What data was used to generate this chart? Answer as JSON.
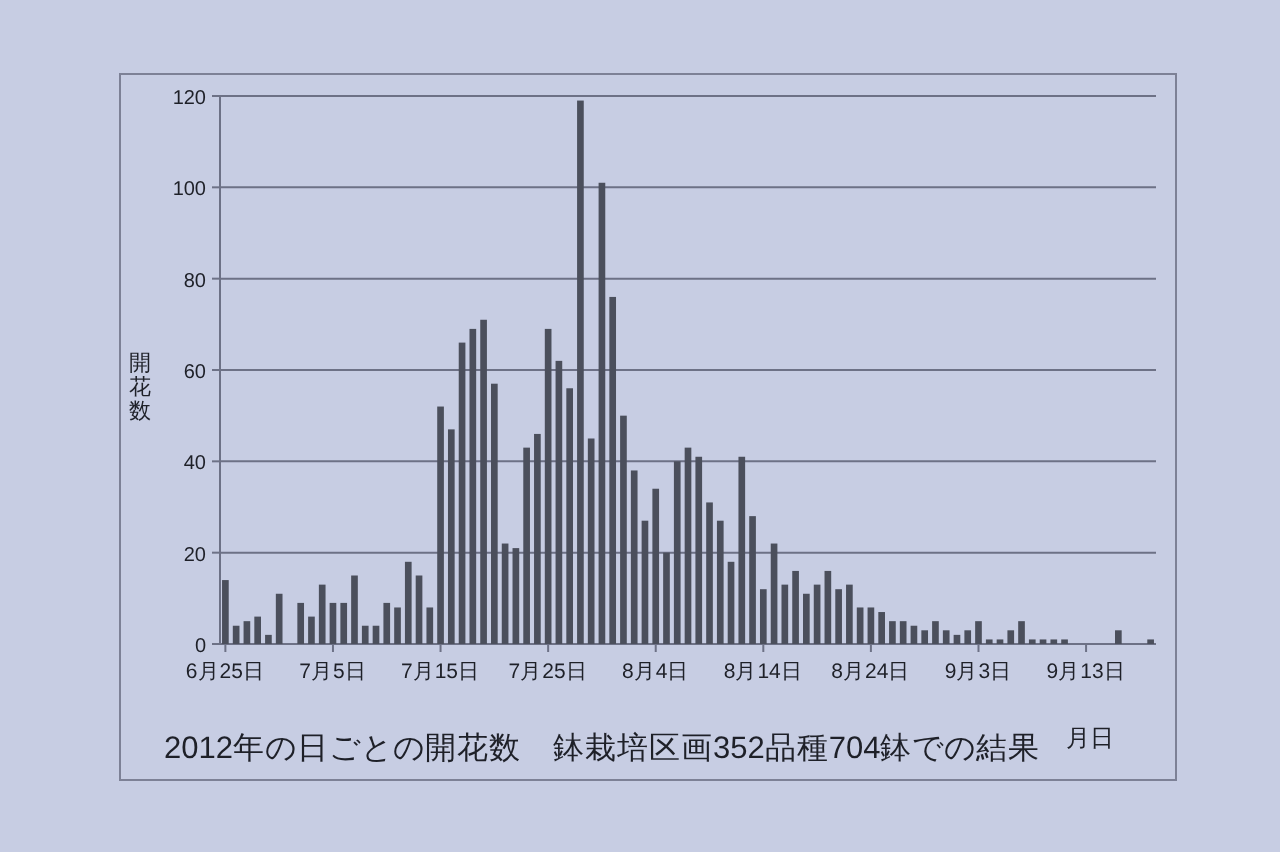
{
  "chart_data": {
    "type": "bar",
    "title": "2012年の日ごとの開花数　鉢栽培区画352品種704鉢での結果",
    "xlabel": "月日",
    "ylabel": "開花数",
    "categories": [
      "6月25日",
      null,
      null,
      null,
      null,
      null,
      null,
      null,
      null,
      null,
      "7月5日",
      null,
      null,
      null,
      null,
      null,
      null,
      null,
      null,
      null,
      "7月15日",
      null,
      null,
      null,
      null,
      null,
      null,
      null,
      null,
      null,
      "7月25日",
      null,
      null,
      null,
      null,
      null,
      null,
      null,
      null,
      null,
      "8月4日",
      null,
      null,
      null,
      null,
      null,
      null,
      null,
      null,
      null,
      "8月14日",
      null,
      null,
      null,
      null,
      null,
      null,
      null,
      null,
      null,
      "8月24日",
      null,
      null,
      null,
      null,
      null,
      null,
      null,
      null,
      null,
      "9月3日",
      null,
      null,
      null,
      null,
      null,
      null,
      null,
      null,
      null,
      "9月13日",
      null,
      null,
      null,
      null,
      null,
      null
    ],
    "values": [
      14,
      4,
      5,
      6,
      2,
      11,
      0,
      9,
      6,
      13,
      9,
      9,
      15,
      4,
      4,
      9,
      8,
      18,
      15,
      8,
      52,
      47,
      66,
      69,
      71,
      57,
      22,
      21,
      43,
      46,
      69,
      62,
      56,
      119,
      45,
      101,
      76,
      50,
      38,
      27,
      34,
      20,
      40,
      43,
      41,
      31,
      27,
      18,
      41,
      28,
      12,
      22,
      13,
      16,
      11,
      13,
      16,
      12,
      13,
      8,
      8,
      7,
      5,
      5,
      4,
      3,
      5,
      3,
      2,
      3,
      5,
      1,
      1,
      3,
      5,
      1,
      1,
      1,
      1,
      0,
      0,
      0,
      0,
      3,
      0,
      0,
      1
    ],
    "color": "#4b4f5c",
    "ylim": [
      0,
      120
    ],
    "yticks": [
      0,
      20,
      40,
      60,
      80,
      100,
      120
    ],
    "grid": "y"
  }
}
